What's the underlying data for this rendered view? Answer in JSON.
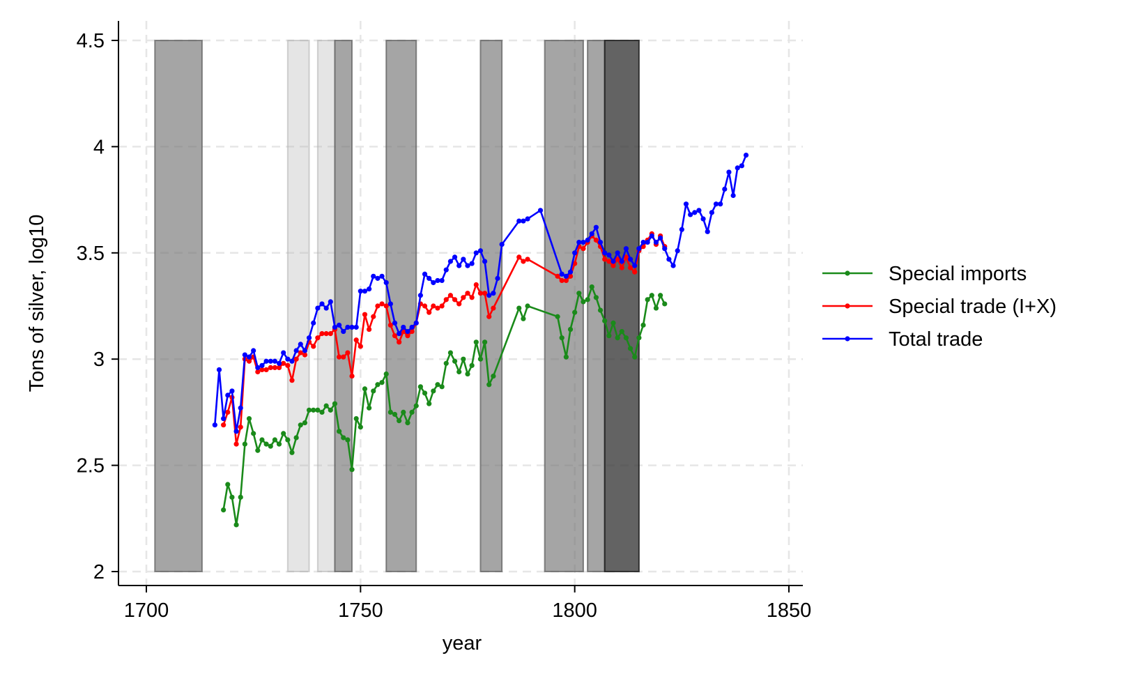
{
  "chart_data": {
    "type": "line",
    "title": "",
    "xlabel": "year",
    "ylabel": "Tons of silver, log10",
    "xlim": [
      1693,
      1852
    ],
    "ylim": [
      1.93,
      4.57
    ],
    "xticks": [
      1700,
      1750,
      1800,
      1850
    ],
    "yticks": [
      2,
      2.5,
      3,
      3.5,
      4,
      4.5
    ],
    "xtick_labels": [
      "1700",
      "1750",
      "1800",
      "1850"
    ],
    "ytick_labels": [
      "2",
      "2.5",
      "3",
      "3.5",
      "4",
      "4.5"
    ],
    "grid": true,
    "legend_position": "right",
    "legend": [
      "Special imports",
      "Special trade (I+X)",
      "Total trade"
    ],
    "shaded_periods": [
      {
        "start": 1702,
        "end": 1713,
        "shade": "medium"
      },
      {
        "start": 1733,
        "end": 1738,
        "shade": "light"
      },
      {
        "start": 1740,
        "end": 1744,
        "shade": "light"
      },
      {
        "start": 1744,
        "end": 1748,
        "shade": "medium"
      },
      {
        "start": 1756,
        "end": 1763,
        "shade": "medium"
      },
      {
        "start": 1778,
        "end": 1783,
        "shade": "medium"
      },
      {
        "start": 1793,
        "end": 1802,
        "shade": "medium"
      },
      {
        "start": 1803,
        "end": 1807,
        "shade": "medium"
      },
      {
        "start": 1807,
        "end": 1815,
        "shade": "dark"
      }
    ],
    "series": [
      {
        "name": "Special imports",
        "color": "#1a8a1a",
        "points": [
          [
            1718,
            2.29
          ],
          [
            1719,
            2.41
          ],
          [
            1720,
            2.35
          ],
          [
            1721,
            2.22
          ],
          [
            1722,
            2.35
          ],
          [
            1723,
            2.6
          ],
          [
            1724,
            2.72
          ],
          [
            1725,
            2.65
          ],
          [
            1726,
            2.57
          ],
          [
            1727,
            2.62
          ],
          [
            1728,
            2.6
          ],
          [
            1729,
            2.59
          ],
          [
            1730,
            2.62
          ],
          [
            1731,
            2.6
          ],
          [
            1732,
            2.65
          ],
          [
            1733,
            2.62
          ],
          [
            1734,
            2.56
          ],
          [
            1735,
            2.63
          ],
          [
            1736,
            2.69
          ],
          [
            1737,
            2.7
          ],
          [
            1738,
            2.76
          ],
          [
            1739,
            2.76
          ],
          [
            1740,
            2.76
          ],
          [
            1741,
            2.75
          ],
          [
            1742,
            2.78
          ],
          [
            1743,
            2.76
          ],
          [
            1744,
            2.79
          ],
          [
            1745,
            2.66
          ],
          [
            1746,
            2.63
          ],
          [
            1747,
            2.62
          ],
          [
            1748,
            2.48
          ],
          [
            1749,
            2.72
          ],
          [
            1750,
            2.68
          ],
          [
            1751,
            2.86
          ],
          [
            1752,
            2.77
          ],
          [
            1753,
            2.85
          ],
          [
            1754,
            2.88
          ],
          [
            1755,
            2.89
          ],
          [
            1756,
            2.93
          ],
          [
            1757,
            2.75
          ],
          [
            1758,
            2.74
          ],
          [
            1759,
            2.71
          ],
          [
            1760,
            2.75
          ],
          [
            1761,
            2.7
          ],
          [
            1762,
            2.75
          ],
          [
            1763,
            2.78
          ],
          [
            1764,
            2.87
          ],
          [
            1765,
            2.84
          ],
          [
            1766,
            2.79
          ],
          [
            1767,
            2.85
          ],
          [
            1768,
            2.88
          ],
          [
            1769,
            2.87
          ],
          [
            1770,
            2.98
          ],
          [
            1771,
            3.03
          ],
          [
            1772,
            2.99
          ],
          [
            1773,
            2.94
          ],
          [
            1774,
            3.0
          ],
          [
            1775,
            2.93
          ],
          [
            1776,
            2.97
          ],
          [
            1777,
            3.08
          ],
          [
            1778,
            3.0
          ],
          [
            1779,
            3.08
          ],
          [
            1780,
            2.88
          ],
          [
            1781,
            2.92
          ],
          [
            1787,
            3.24
          ],
          [
            1788,
            3.19
          ],
          [
            1789,
            3.25
          ],
          [
            1796,
            3.2
          ],
          [
            1797,
            3.1
          ],
          [
            1798,
            3.01
          ],
          [
            1799,
            3.14
          ],
          [
            1800,
            3.22
          ],
          [
            1801,
            3.31
          ],
          [
            1802,
            3.27
          ],
          [
            1803,
            3.28
          ],
          [
            1804,
            3.34
          ],
          [
            1805,
            3.29
          ],
          [
            1806,
            3.23
          ],
          [
            1807,
            3.18
          ],
          [
            1808,
            3.11
          ],
          [
            1809,
            3.17
          ],
          [
            1810,
            3.1
          ],
          [
            1811,
            3.13
          ],
          [
            1812,
            3.1
          ],
          [
            1813,
            3.05
          ],
          [
            1814,
            3.01
          ],
          [
            1815,
            3.1
          ],
          [
            1816,
            3.16
          ],
          [
            1817,
            3.28
          ],
          [
            1818,
            3.3
          ],
          [
            1819,
            3.24
          ],
          [
            1820,
            3.3
          ],
          [
            1821,
            3.26
          ]
        ]
      },
      {
        "name": "Special trade (I+X)",
        "color": "#ff0000",
        "points": [
          [
            1718,
            2.69
          ],
          [
            1719,
            2.75
          ],
          [
            1720,
            2.82
          ],
          [
            1721,
            2.6
          ],
          [
            1722,
            2.68
          ],
          [
            1723,
            3.0
          ],
          [
            1724,
            2.99
          ],
          [
            1725,
            3.01
          ],
          [
            1726,
            2.94
          ],
          [
            1727,
            2.95
          ],
          [
            1728,
            2.95
          ],
          [
            1729,
            2.96
          ],
          [
            1730,
            2.96
          ],
          [
            1731,
            2.96
          ],
          [
            1732,
            2.98
          ],
          [
            1733,
            2.97
          ],
          [
            1734,
            2.9
          ],
          [
            1735,
            3.0
          ],
          [
            1736,
            3.03
          ],
          [
            1737,
            3.02
          ],
          [
            1738,
            3.08
          ],
          [
            1739,
            3.06
          ],
          [
            1740,
            3.1
          ],
          [
            1741,
            3.12
          ],
          [
            1742,
            3.12
          ],
          [
            1743,
            3.12
          ],
          [
            1744,
            3.14
          ],
          [
            1745,
            3.01
          ],
          [
            1746,
            3.01
          ],
          [
            1747,
            3.03
          ],
          [
            1748,
            2.92
          ],
          [
            1749,
            3.09
          ],
          [
            1750,
            3.06
          ],
          [
            1751,
            3.21
          ],
          [
            1752,
            3.14
          ],
          [
            1753,
            3.2
          ],
          [
            1754,
            3.25
          ],
          [
            1755,
            3.26
          ],
          [
            1756,
            3.25
          ],
          [
            1757,
            3.16
          ],
          [
            1758,
            3.11
          ],
          [
            1759,
            3.08
          ],
          [
            1760,
            3.13
          ],
          [
            1761,
            3.11
          ],
          [
            1762,
            3.13
          ],
          [
            1763,
            3.17
          ],
          [
            1764,
            3.26
          ],
          [
            1765,
            3.25
          ],
          [
            1766,
            3.22
          ],
          [
            1767,
            3.25
          ],
          [
            1768,
            3.24
          ],
          [
            1769,
            3.25
          ],
          [
            1770,
            3.28
          ],
          [
            1771,
            3.3
          ],
          [
            1772,
            3.28
          ],
          [
            1773,
            3.26
          ],
          [
            1774,
            3.29
          ],
          [
            1775,
            3.31
          ],
          [
            1776,
            3.29
          ],
          [
            1777,
            3.35
          ],
          [
            1778,
            3.31
          ],
          [
            1779,
            3.31
          ],
          [
            1780,
            3.2
          ],
          [
            1781,
            3.24
          ],
          [
            1787,
            3.48
          ],
          [
            1788,
            3.46
          ],
          [
            1789,
            3.47
          ],
          [
            1796,
            3.39
          ],
          [
            1797,
            3.37
          ],
          [
            1798,
            3.37
          ],
          [
            1799,
            3.39
          ],
          [
            1800,
            3.45
          ],
          [
            1801,
            3.53
          ],
          [
            1802,
            3.52
          ],
          [
            1803,
            3.55
          ],
          [
            1804,
            3.58
          ],
          [
            1805,
            3.56
          ],
          [
            1806,
            3.53
          ],
          [
            1807,
            3.47
          ],
          [
            1808,
            3.46
          ],
          [
            1809,
            3.44
          ],
          [
            1810,
            3.47
          ],
          [
            1811,
            3.43
          ],
          [
            1812,
            3.48
          ],
          [
            1813,
            3.43
          ],
          [
            1814,
            3.41
          ],
          [
            1815,
            3.51
          ],
          [
            1816,
            3.53
          ],
          [
            1817,
            3.56
          ],
          [
            1818,
            3.59
          ],
          [
            1819,
            3.54
          ],
          [
            1820,
            3.58
          ],
          [
            1821,
            3.53
          ]
        ]
      },
      {
        "name": "Total trade",
        "color": "#0000ff",
        "points": [
          [
            1716,
            2.69
          ],
          [
            1717,
            2.95
          ],
          [
            1718,
            2.72
          ],
          [
            1719,
            2.83
          ],
          [
            1720,
            2.85
          ],
          [
            1721,
            2.66
          ],
          [
            1722,
            2.77
          ],
          [
            1723,
            3.02
          ],
          [
            1724,
            3.01
          ],
          [
            1725,
            3.04
          ],
          [
            1726,
            2.96
          ],
          [
            1727,
            2.97
          ],
          [
            1728,
            2.99
          ],
          [
            1729,
            2.99
          ],
          [
            1730,
            2.99
          ],
          [
            1731,
            2.98
          ],
          [
            1732,
            3.03
          ],
          [
            1733,
            3.0
          ],
          [
            1734,
            2.99
          ],
          [
            1735,
            3.04
          ],
          [
            1736,
            3.07
          ],
          [
            1737,
            3.04
          ],
          [
            1738,
            3.1
          ],
          [
            1739,
            3.17
          ],
          [
            1740,
            3.24
          ],
          [
            1741,
            3.26
          ],
          [
            1742,
            3.24
          ],
          [
            1743,
            3.27
          ],
          [
            1744,
            3.15
          ],
          [
            1745,
            3.16
          ],
          [
            1746,
            3.13
          ],
          [
            1747,
            3.15
          ],
          [
            1748,
            3.15
          ],
          [
            1749,
            3.15
          ],
          [
            1750,
            3.32
          ],
          [
            1751,
            3.32
          ],
          [
            1752,
            3.33
          ],
          [
            1753,
            3.39
          ],
          [
            1754,
            3.38
          ],
          [
            1755,
            3.39
          ],
          [
            1756,
            3.36
          ],
          [
            1757,
            3.26
          ],
          [
            1758,
            3.17
          ],
          [
            1759,
            3.12
          ],
          [
            1760,
            3.15
          ],
          [
            1761,
            3.13
          ],
          [
            1762,
            3.15
          ],
          [
            1763,
            3.17
          ],
          [
            1764,
            3.3
          ],
          [
            1765,
            3.4
          ],
          [
            1766,
            3.38
          ],
          [
            1767,
            3.36
          ],
          [
            1768,
            3.37
          ],
          [
            1769,
            3.37
          ],
          [
            1770,
            3.42
          ],
          [
            1771,
            3.46
          ],
          [
            1772,
            3.48
          ],
          [
            1773,
            3.44
          ],
          [
            1774,
            3.47
          ],
          [
            1775,
            3.44
          ],
          [
            1776,
            3.45
          ],
          [
            1777,
            3.5
          ],
          [
            1778,
            3.51
          ],
          [
            1779,
            3.46
          ],
          [
            1780,
            3.3
          ],
          [
            1781,
            3.31
          ],
          [
            1782,
            3.38
          ],
          [
            1783,
            3.54
          ],
          [
            1787,
            3.65
          ],
          [
            1788,
            3.65
          ],
          [
            1789,
            3.66
          ],
          [
            1792,
            3.7
          ],
          [
            1797,
            3.4
          ],
          [
            1798,
            3.39
          ],
          [
            1799,
            3.41
          ],
          [
            1800,
            3.5
          ],
          [
            1801,
            3.55
          ],
          [
            1802,
            3.55
          ],
          [
            1803,
            3.56
          ],
          [
            1804,
            3.59
          ],
          [
            1805,
            3.62
          ],
          [
            1806,
            3.55
          ],
          [
            1807,
            3.5
          ],
          [
            1808,
            3.49
          ],
          [
            1809,
            3.46
          ],
          [
            1810,
            3.5
          ],
          [
            1811,
            3.46
          ],
          [
            1812,
            3.52
          ],
          [
            1813,
            3.47
          ],
          [
            1814,
            3.44
          ],
          [
            1815,
            3.52
          ],
          [
            1816,
            3.55
          ],
          [
            1817,
            3.55
          ],
          [
            1818,
            3.58
          ],
          [
            1819,
            3.55
          ],
          [
            1820,
            3.57
          ],
          [
            1821,
            3.52
          ],
          [
            1822,
            3.47
          ],
          [
            1823,
            3.44
          ],
          [
            1824,
            3.51
          ],
          [
            1825,
            3.61
          ],
          [
            1826,
            3.73
          ],
          [
            1827,
            3.68
          ],
          [
            1828,
            3.69
          ],
          [
            1829,
            3.7
          ],
          [
            1830,
            3.66
          ],
          [
            1831,
            3.6
          ],
          [
            1832,
            3.69
          ],
          [
            1833,
            3.73
          ],
          [
            1834,
            3.73
          ],
          [
            1835,
            3.8
          ],
          [
            1836,
            3.88
          ],
          [
            1837,
            3.77
          ],
          [
            1838,
            3.9
          ],
          [
            1839,
            3.91
          ],
          [
            1840,
            3.96
          ]
        ]
      }
    ]
  }
}
